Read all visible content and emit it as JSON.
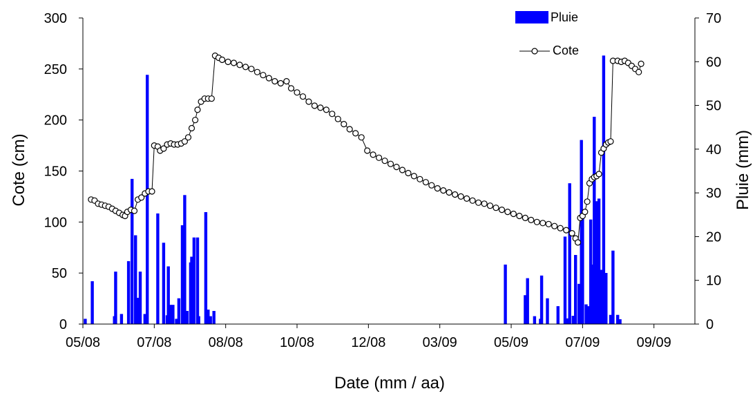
{
  "chart_data": {
    "type": "bar+scatter-line",
    "xlabel": "Date (mm / aa)",
    "ylabel_left": "Cote (cm)",
    "ylabel_right": "Pluie (mm)",
    "ylim_left": [
      0,
      300
    ],
    "ylim_right": [
      0,
      70
    ],
    "left_ticks": [
      0,
      50,
      100,
      150,
      200,
      250,
      300
    ],
    "right_ticks": [
      0,
      10,
      20,
      30,
      40,
      50,
      60,
      70
    ],
    "x_ticks": [
      {
        "label": "05/08",
        "date": "2008-05-01"
      },
      {
        "label": "07/08",
        "date": "2008-07-01"
      },
      {
        "label": "08/08",
        "date": "2008-08-31"
      },
      {
        "label": "10/08",
        "date": "2008-10-31"
      },
      {
        "label": "12/08",
        "date": "2008-12-31"
      },
      {
        "label": "03/09",
        "date": "2009-03-02"
      },
      {
        "label": "05/09",
        "date": "2009-05-02"
      },
      {
        "label": "07/09",
        "date": "2009-07-02"
      },
      {
        "label": "09/09",
        "date": "2009-09-01"
      }
    ],
    "xlim": [
      "2008-05-01",
      "2009-10-06"
    ],
    "grid": false,
    "legend": "top-right",
    "series": [
      {
        "name": "Pluie",
        "kind": "bar",
        "axis": "right",
        "color": "#0000ff",
        "points": [
          [
            "2008-05-03",
            1.2
          ],
          [
            "2008-05-09",
            9.8
          ],
          [
            "2008-05-28",
            1.8
          ],
          [
            "2008-05-29",
            12.0
          ],
          [
            "2008-06-03",
            2.3
          ],
          [
            "2008-06-09",
            14.4
          ],
          [
            "2008-06-12",
            33.2
          ],
          [
            "2008-06-15",
            20.3
          ],
          [
            "2008-06-17",
            6.0
          ],
          [
            "2008-06-19",
            12.0
          ],
          [
            "2008-06-23",
            2.3
          ],
          [
            "2008-06-25",
            57.0
          ],
          [
            "2008-07-04",
            25.3
          ],
          [
            "2008-07-09",
            18.6
          ],
          [
            "2008-07-12",
            2.0
          ],
          [
            "2008-07-13",
            13.2
          ],
          [
            "2008-07-15",
            4.4
          ],
          [
            "2008-07-17",
            4.4
          ],
          [
            "2008-07-20",
            1.2
          ],
          [
            "2008-07-22",
            5.9
          ],
          [
            "2008-07-25",
            22.6
          ],
          [
            "2008-07-27",
            29.5
          ],
          [
            "2008-07-29",
            3.0
          ],
          [
            "2008-08-01",
            14.1
          ],
          [
            "2008-08-02",
            15.4
          ],
          [
            "2008-08-04",
            19.8
          ],
          [
            "2008-08-07",
            19.8
          ],
          [
            "2008-08-08",
            1.8
          ],
          [
            "2008-08-14",
            25.6
          ],
          [
            "2008-08-16",
            3.3
          ],
          [
            "2008-08-18",
            1.8
          ],
          [
            "2008-08-21",
            3.0
          ],
          [
            "2009-04-27",
            13.6
          ],
          [
            "2009-05-14",
            6.6
          ],
          [
            "2009-05-16",
            10.5
          ],
          [
            "2009-05-22",
            1.8
          ],
          [
            "2009-05-27",
            1.2
          ],
          [
            "2009-05-28",
            11.1
          ],
          [
            "2009-06-02",
            5.9
          ],
          [
            "2009-06-11",
            4.1
          ],
          [
            "2009-06-17",
            20.0
          ],
          [
            "2009-06-19",
            1.3
          ],
          [
            "2009-06-21",
            32.2
          ],
          [
            "2009-06-24",
            1.9
          ],
          [
            "2009-06-26",
            15.8
          ],
          [
            "2009-06-29",
            9.2
          ],
          [
            "2009-07-01",
            42.1
          ],
          [
            "2009-07-02",
            24.6
          ],
          [
            "2009-07-05",
            4.5
          ],
          [
            "2009-07-07",
            4.1
          ],
          [
            "2009-07-09",
            23.9
          ],
          [
            "2009-07-10",
            13.6
          ],
          [
            "2009-07-12",
            47.4
          ],
          [
            "2009-07-13",
            11.1
          ],
          [
            "2009-07-14",
            28.1
          ],
          [
            "2009-07-16",
            28.7
          ],
          [
            "2009-07-18",
            12.4
          ],
          [
            "2009-07-20",
            61.4
          ],
          [
            "2009-07-22",
            11.7
          ],
          [
            "2009-07-26",
            2.1
          ],
          [
            "2009-07-28",
            16.8
          ],
          [
            "2009-08-01",
            2.1
          ],
          [
            "2009-08-03",
            1.1
          ]
        ]
      },
      {
        "name": "Cote",
        "kind": "line-markers",
        "axis": "left",
        "color": "#000000",
        "points": [
          [
            "2008-05-08",
            122
          ],
          [
            "2008-05-11",
            121
          ],
          [
            "2008-05-14",
            118
          ],
          [
            "2008-05-17",
            117
          ],
          [
            "2008-05-20",
            116
          ],
          [
            "2008-05-23",
            115
          ],
          [
            "2008-05-26",
            113
          ],
          [
            "2008-05-29",
            111
          ],
          [
            "2008-06-01",
            109
          ],
          [
            "2008-06-04",
            107
          ],
          [
            "2008-06-06",
            106
          ],
          [
            "2008-06-08",
            110
          ],
          [
            "2008-06-11",
            112
          ],
          [
            "2008-06-14",
            111
          ],
          [
            "2008-06-17",
            122
          ],
          [
            "2008-06-20",
            124
          ],
          [
            "2008-06-23",
            128
          ],
          [
            "2008-06-26",
            130
          ],
          [
            "2008-06-29",
            130
          ],
          [
            "2008-07-01",
            175
          ],
          [
            "2008-07-04",
            174
          ],
          [
            "2008-07-06",
            170
          ],
          [
            "2008-07-09",
            172
          ],
          [
            "2008-07-12",
            176
          ],
          [
            "2008-07-15",
            177
          ],
          [
            "2008-07-18",
            176
          ],
          [
            "2008-07-21",
            176
          ],
          [
            "2008-07-24",
            177
          ],
          [
            "2008-07-27",
            179
          ],
          [
            "2008-07-30",
            183
          ],
          [
            "2008-08-02",
            192
          ],
          [
            "2008-08-05",
            200
          ],
          [
            "2008-08-07",
            210
          ],
          [
            "2008-08-10",
            218
          ],
          [
            "2008-08-13",
            221
          ],
          [
            "2008-08-16",
            221
          ],
          [
            "2008-08-19",
            221
          ],
          [
            "2008-08-22",
            263
          ],
          [
            "2008-08-25",
            261
          ],
          [
            "2008-08-28",
            259
          ],
          [
            "2008-09-02",
            257
          ],
          [
            "2008-09-07",
            256
          ],
          [
            "2008-09-12",
            254
          ],
          [
            "2008-09-17",
            252
          ],
          [
            "2008-09-22",
            250
          ],
          [
            "2008-09-27",
            247
          ],
          [
            "2008-10-02",
            244
          ],
          [
            "2008-10-07",
            241
          ],
          [
            "2008-10-12",
            238
          ],
          [
            "2008-10-17",
            236
          ],
          [
            "2008-10-22",
            238
          ],
          [
            "2008-10-26",
            231
          ],
          [
            "2008-10-31",
            227
          ],
          [
            "2008-11-05",
            223
          ],
          [
            "2008-11-10",
            218
          ],
          [
            "2008-11-15",
            214
          ],
          [
            "2008-11-20",
            212
          ],
          [
            "2008-11-25",
            210
          ],
          [
            "2008-11-30",
            206
          ],
          [
            "2008-12-05",
            201
          ],
          [
            "2008-12-10",
            196
          ],
          [
            "2008-12-15",
            191
          ],
          [
            "2008-12-20",
            187
          ],
          [
            "2008-12-25",
            183
          ],
          [
            "2008-12-30",
            170
          ],
          [
            "2009-01-04",
            166
          ],
          [
            "2009-01-09",
            163
          ],
          [
            "2009-01-14",
            160
          ],
          [
            "2009-01-19",
            157
          ],
          [
            "2009-01-24",
            154
          ],
          [
            "2009-01-29",
            151
          ],
          [
            "2009-02-03",
            148
          ],
          [
            "2009-02-08",
            145
          ],
          [
            "2009-02-13",
            142
          ],
          [
            "2009-02-18",
            139
          ],
          [
            "2009-02-23",
            136
          ],
          [
            "2009-02-28",
            133
          ],
          [
            "2009-03-05",
            131
          ],
          [
            "2009-03-10",
            129
          ],
          [
            "2009-03-15",
            127
          ],
          [
            "2009-03-20",
            125
          ],
          [
            "2009-03-25",
            123
          ],
          [
            "2009-03-30",
            121
          ],
          [
            "2009-04-04",
            119
          ],
          [
            "2009-04-09",
            118
          ],
          [
            "2009-04-14",
            116
          ],
          [
            "2009-04-19",
            114
          ],
          [
            "2009-04-24",
            112
          ],
          [
            "2009-04-29",
            110
          ],
          [
            "2009-05-04",
            108
          ],
          [
            "2009-05-09",
            106
          ],
          [
            "2009-05-14",
            104
          ],
          [
            "2009-05-19",
            102
          ],
          [
            "2009-05-24",
            100
          ],
          [
            "2009-05-29",
            99
          ],
          [
            "2009-06-03",
            98
          ],
          [
            "2009-06-08",
            96
          ],
          [
            "2009-06-13",
            94
          ],
          [
            "2009-06-18",
            92
          ],
          [
            "2009-06-23",
            89
          ],
          [
            "2009-06-26",
            84
          ],
          [
            "2009-06-28",
            80
          ],
          [
            "2009-06-30",
            104
          ],
          [
            "2009-07-02",
            106
          ],
          [
            "2009-07-04",
            110
          ],
          [
            "2009-07-06",
            120
          ],
          [
            "2009-07-08",
            138
          ],
          [
            "2009-07-10",
            142
          ],
          [
            "2009-07-12",
            144
          ],
          [
            "2009-07-14",
            145
          ],
          [
            "2009-07-16",
            147
          ],
          [
            "2009-07-18",
            168
          ],
          [
            "2009-07-20",
            172
          ],
          [
            "2009-07-22",
            176
          ],
          [
            "2009-07-24",
            178
          ],
          [
            "2009-07-26",
            179
          ],
          [
            "2009-07-28",
            258
          ],
          [
            "2009-08-01",
            258
          ],
          [
            "2009-08-04",
            257
          ],
          [
            "2009-08-07",
            258
          ],
          [
            "2009-08-10",
            256
          ],
          [
            "2009-08-13",
            253
          ],
          [
            "2009-08-16",
            250
          ],
          [
            "2009-08-19",
            247
          ],
          [
            "2009-08-21",
            255
          ]
        ]
      }
    ]
  }
}
